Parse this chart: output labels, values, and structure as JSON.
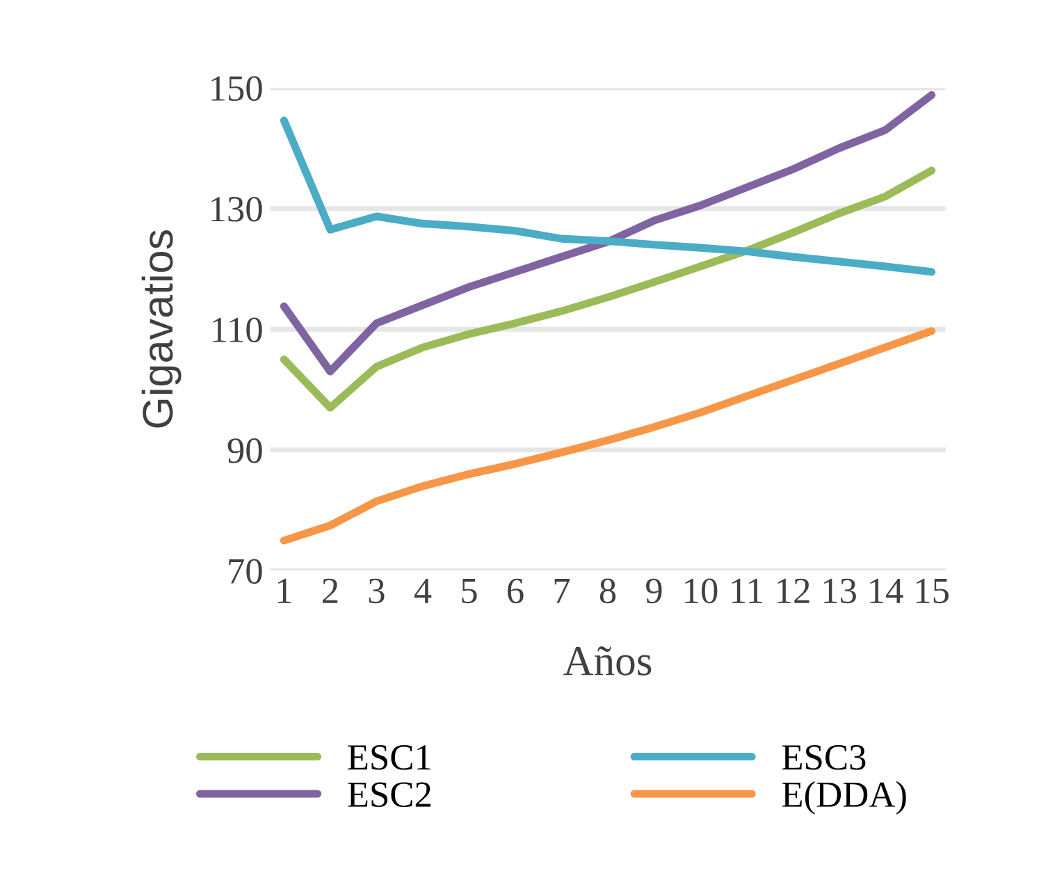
{
  "chart_data": {
    "type": "line",
    "xlabel": "Años",
    "ylabel": "Gigavatios",
    "categories": [
      "1",
      "2",
      "3",
      "4",
      "5",
      "6",
      "7",
      "8",
      "9",
      "10",
      "11",
      "12",
      "13",
      "14",
      "15"
    ],
    "series": [
      {
        "name": "ESC1",
        "color": "#9bbb59",
        "values": [
          105,
          97,
          103.8,
          107,
          109.2,
          111,
          113,
          115.3,
          117.8,
          120.4,
          123,
          126,
          129.2,
          132,
          136.3
        ]
      },
      {
        "name": "ESC2",
        "color": "#8064a2",
        "values": [
          113.8,
          103,
          111,
          114,
          117,
          119.5,
          122,
          124.5,
          128,
          130.5,
          133.5,
          136.5,
          140,
          143,
          148.8
        ]
      },
      {
        "name": "ESC3",
        "color": "#4bacc6",
        "values": [
          144.6,
          126.5,
          128.7,
          127.5,
          127,
          126.3,
          125,
          124.6,
          124,
          123.5,
          122.9,
          122,
          121.2,
          120.4,
          119.5
        ]
      },
      {
        "name": "E(DDA)",
        "color": "#f79646",
        "values": [
          75,
          77.5,
          81.5,
          84,
          86,
          87.7,
          89.6,
          91.6,
          93.8,
          96.2,
          98.9,
          101.6,
          104.3,
          107,
          109.7
        ]
      }
    ],
    "ylim": [
      70,
      150
    ],
    "yticks": [
      70,
      90,
      110,
      130,
      150
    ],
    "grid": "y",
    "legend": "bottom",
    "marker": "none",
    "line_style": "solid"
  }
}
